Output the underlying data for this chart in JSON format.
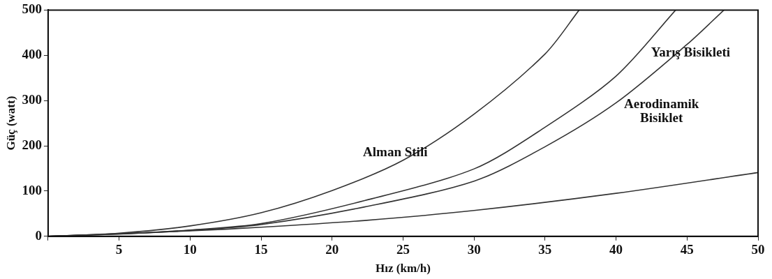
{
  "chart_data": {
    "type": "line",
    "xlabel": "Hız (km/h)",
    "ylabel": "Güç (watt)",
    "xlim": [
      0,
      50
    ],
    "ylim": [
      0,
      500
    ],
    "xticks": [
      {
        "value": 0,
        "label": null
      },
      5,
      10,
      15,
      20,
      25,
      30,
      35,
      40,
      45,
      50
    ],
    "yticks": [
      0,
      100,
      200,
      300,
      400,
      500
    ],
    "grid": false,
    "legend": false,
    "marker": "none",
    "line_style": "solid",
    "series": [
      {
        "name": "Alman Stili",
        "color": "#333333",
        "x": [
          0,
          5,
          10,
          15,
          20,
          25,
          30,
          35,
          37.4
        ],
        "values": [
          0,
          7,
          23,
          52,
          101,
          168,
          270,
          403,
          500
        ]
      },
      {
        "name": "Yarış Bisikleti",
        "color": "#333333",
        "x": [
          0,
          5,
          10,
          15,
          22.3,
          30,
          35,
          40,
          44.2
        ],
        "values": [
          0,
          5,
          14,
          28,
          79,
          149,
          241,
          354,
          500
        ]
      },
      {
        "name": "Aerodinamik Bisiklet",
        "color": "#333333",
        "x": [
          0,
          5,
          10,
          15,
          22.3,
          30,
          35,
          40,
          45,
          47.6
        ],
        "values": [
          0,
          5,
          13,
          26,
          65,
          122,
          198,
          295,
          424,
          500
        ]
      },
      {
        "color": "#333333",
        "x": [
          0,
          10,
          15,
          22.3,
          30,
          40,
          50
        ],
        "values": [
          0,
          12,
          20,
          35,
          57,
          95,
          141
        ]
      }
    ]
  }
}
